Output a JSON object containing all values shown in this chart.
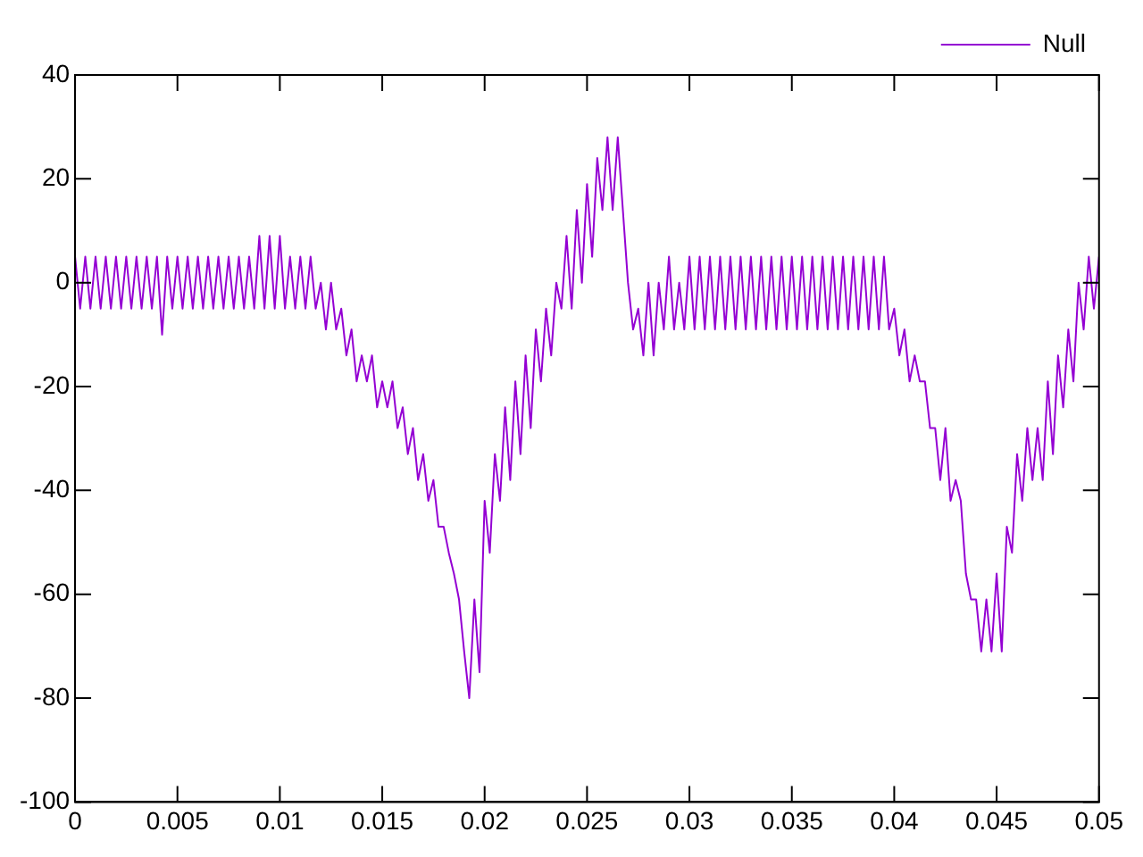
{
  "chart_data": {
    "type": "line",
    "legend": "top right",
    "grid": false,
    "marker": "none",
    "line_style": "solid",
    "xlim": [
      0,
      0.05
    ],
    "xticks": [
      0,
      0.005,
      0.01,
      0.015,
      0.02,
      0.025,
      0.03,
      0.035,
      0.04,
      0.045,
      0.05
    ],
    "ylim": [
      -100,
      40
    ],
    "yticks": [
      -100,
      -80,
      -60,
      -40,
      -20,
      0,
      20,
      40
    ],
    "series": [
      {
        "name": "Null",
        "color": "#9400d3",
        "x": [
          0,
          0.00025,
          0.0005,
          0.00075,
          0.001,
          0.00125,
          0.0015,
          0.00175,
          0.002,
          0.00225,
          0.0025,
          0.00275,
          0.003,
          0.00325,
          0.0035,
          0.00375,
          0.004,
          0.00425,
          0.0045,
          0.00475,
          0.005,
          0.00525,
          0.0055,
          0.00575,
          0.006,
          0.00625,
          0.0065,
          0.00675,
          0.007,
          0.00725,
          0.0075,
          0.00775,
          0.008,
          0.00825,
          0.0085,
          0.00875,
          0.009,
          0.00925,
          0.0095,
          0.00975,
          0.01,
          0.01025,
          0.0105,
          0.01075,
          0.011,
          0.01125,
          0.0115,
          0.01175,
          0.012,
          0.01225,
          0.0125,
          0.01275,
          0.013,
          0.01325,
          0.0135,
          0.01375,
          0.014,
          0.01425,
          0.0145,
          0.01475,
          0.015,
          0.01525,
          0.0155,
          0.01575,
          0.016,
          0.01625,
          0.0165,
          0.01675,
          0.017,
          0.01725,
          0.0175,
          0.01775,
          0.018,
          0.01825,
          0.0185,
          0.01875,
          0.019,
          0.01925,
          0.0195,
          0.01975,
          0.02,
          0.02025,
          0.0205,
          0.02075,
          0.021,
          0.02125,
          0.0215,
          0.02175,
          0.022,
          0.02225,
          0.0225,
          0.02275,
          0.023,
          0.02325,
          0.0235,
          0.02375,
          0.024,
          0.02425,
          0.0245,
          0.02475,
          0.025,
          0.02525,
          0.0255,
          0.02575,
          0.026,
          0.02625,
          0.0265,
          0.02675,
          0.027,
          0.02725,
          0.0275,
          0.02775,
          0.028,
          0.02825,
          0.0285,
          0.02875,
          0.029,
          0.02925,
          0.0295,
          0.02975,
          0.03,
          0.03025,
          0.0305,
          0.03075,
          0.031,
          0.03125,
          0.0315,
          0.03175,
          0.032,
          0.03225,
          0.0325,
          0.03275,
          0.033,
          0.03325,
          0.0335,
          0.03375,
          0.034,
          0.03425,
          0.0345,
          0.03475,
          0.035,
          0.03525,
          0.0355,
          0.03575,
          0.036,
          0.03625,
          0.0365,
          0.03675,
          0.037,
          0.03725,
          0.0375,
          0.03775,
          0.038,
          0.03825,
          0.0385,
          0.03875,
          0.039,
          0.03925,
          0.0395,
          0.03975,
          0.04,
          0.04025,
          0.0405,
          0.04075,
          0.041,
          0.04125,
          0.0415,
          0.04175,
          0.042,
          0.04225,
          0.0425,
          0.04275,
          0.043,
          0.04325,
          0.0435,
          0.04375,
          0.044,
          0.04425,
          0.0445,
          0.04475,
          0.045,
          0.04525,
          0.0455,
          0.04575,
          0.046,
          0.04625,
          0.0465,
          0.04675,
          0.047,
          0.04725,
          0.0475,
          0.04775,
          0.048,
          0.04825,
          0.0485,
          0.04875,
          0.049,
          0.04925,
          0.0495,
          0.04975,
          0.05
        ],
        "values": [
          5,
          -5,
          5,
          -5,
          5,
          -5,
          5,
          -5,
          5,
          -5,
          5,
          -5,
          5,
          -5,
          5,
          -5,
          5,
          -10,
          5,
          -5,
          5,
          -5,
          5,
          -5,
          5,
          -5,
          5,
          -5,
          5,
          -5,
          5,
          -5,
          5,
          -5,
          5,
          -5,
          9,
          -5,
          9,
          -5,
          9,
          -5,
          5,
          -5,
          5,
          -5,
          5,
          -5,
          0,
          -9,
          0,
          -9,
          -5,
          -14,
          -9,
          -19,
          -14,
          -19,
          -14,
          -24,
          -19,
          -24,
          -19,
          -28,
          -24,
          -33,
          -28,
          -38,
          -33,
          -42,
          -38,
          -47,
          -47,
          -52,
          -56,
          -61,
          -71,
          -80,
          -61,
          -75,
          -42,
          -52,
          -33,
          -42,
          -24,
          -38,
          -19,
          -33,
          -14,
          -28,
          -9,
          -19,
          -5,
          -14,
          0,
          -5,
          9,
          -5,
          14,
          0,
          19,
          5,
          24,
          14,
          28,
          14,
          28,
          14,
          0,
          -9,
          -5,
          -14,
          0,
          -14,
          0,
          -9,
          5,
          -9,
          0,
          -9,
          5,
          -9,
          5,
          -9,
          5,
          -9,
          5,
          -9,
          5,
          -9,
          5,
          -9,
          5,
          -9,
          5,
          -9,
          5,
          -9,
          5,
          -9,
          5,
          -9,
          5,
          -9,
          5,
          -9,
          5,
          -9,
          5,
          -9,
          5,
          -9,
          5,
          -9,
          5,
          -9,
          5,
          -9,
          5,
          -9,
          -5,
          -14,
          -9,
          -19,
          -14,
          -19,
          -19,
          -28,
          -28,
          -38,
          -28,
          -42,
          -38,
          -42,
          -56,
          -61,
          -61,
          -71,
          -61,
          -71,
          -56,
          -71,
          -47,
          -52,
          -33,
          -42,
          -28,
          -38,
          -28,
          -38,
          -19,
          -33,
          -14,
          -24,
          -9,
          -19,
          0,
          -9,
          5,
          -5,
          5
        ]
      }
    ]
  }
}
